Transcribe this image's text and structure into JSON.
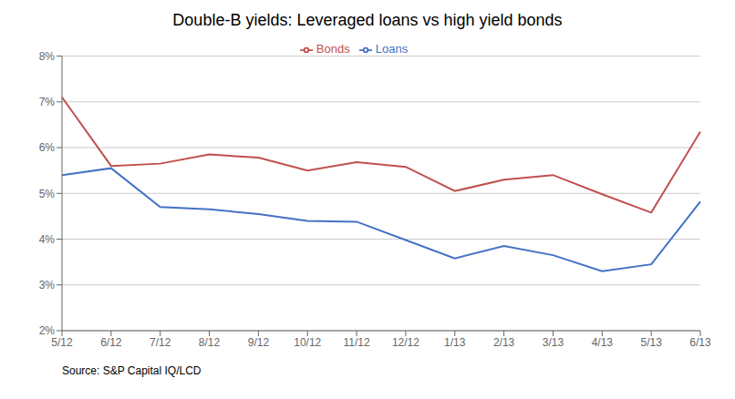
{
  "chart_data": {
    "type": "line",
    "title": "Double-B yields: Leveraged loans vs high yield bonds",
    "categories": [
      "5/12",
      "6/12",
      "7/12",
      "8/12",
      "9/12",
      "10/12",
      "11/12",
      "12/12",
      "1/13",
      "2/13",
      "3/13",
      "4/13",
      "5/13",
      "6/13"
    ],
    "series": [
      {
        "name": "Loans",
        "color": "#4472C4",
        "values": [
          5.4,
          5.55,
          4.7,
          4.65,
          4.55,
          4.4,
          4.38,
          3.98,
          3.58,
          3.85,
          3.65,
          3.3,
          3.45,
          4.82
        ]
      },
      {
        "name": "Bonds",
        "color": "#C0504D",
        "values": [
          7.1,
          5.6,
          5.65,
          5.85,
          5.78,
          5.5,
          5.68,
          5.58,
          5.05,
          5.3,
          5.4,
          4.98,
          4.58,
          6.35
        ]
      }
    ],
    "ylim": [
      2,
      8
    ],
    "yticks": [
      {
        "value": 2,
        "label": "2%"
      },
      {
        "value": 3,
        "label": "3%"
      },
      {
        "value": 4,
        "label": "4%"
      },
      {
        "value": 5,
        "label": "5%"
      },
      {
        "value": 6,
        "label": "6%"
      },
      {
        "value": 7,
        "label": "7%"
      },
      {
        "value": 8,
        "label": "8%"
      }
    ],
    "grid": true,
    "legend": "top",
    "annotations": [
      "Source: S&P Capital IQ/LCD"
    ]
  }
}
